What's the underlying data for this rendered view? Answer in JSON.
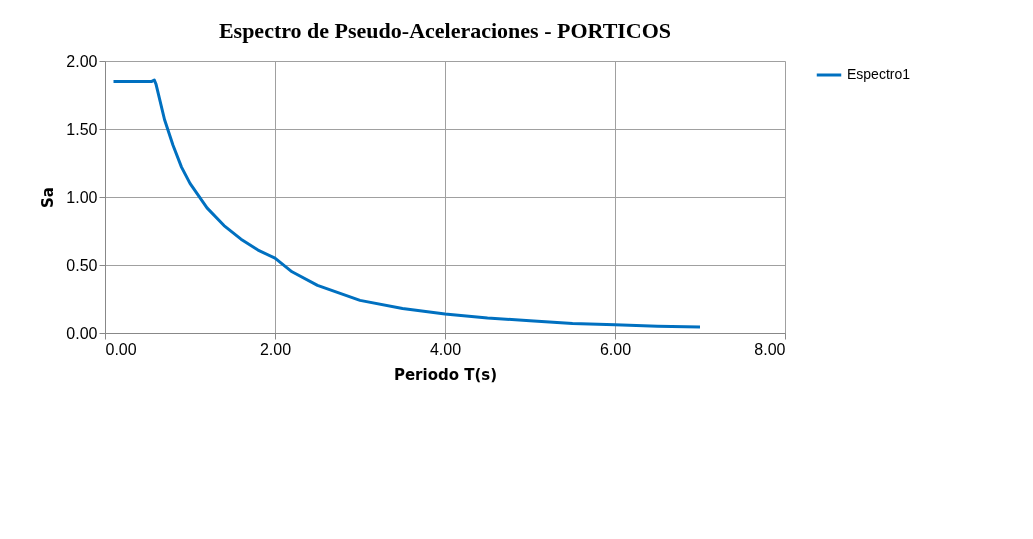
{
  "chart_data": {
    "type": "line",
    "title": "Espectro de Pseudo-Aceleraciones - PORTICOS",
    "xlabel": "Periodo T(s)",
    "ylabel": "Sa",
    "x": [
      0.1,
      0.55,
      0.58,
      0.6,
      0.7,
      0.8,
      0.9,
      1.0,
      1.2,
      1.4,
      1.6,
      1.8,
      2.0,
      2.2,
      2.5,
      3.0,
      3.5,
      4.0,
      4.5,
      5.0,
      5.5,
      6.0,
      6.5,
      7.0
    ],
    "series": [
      {
        "name": "Espectro1",
        "color": "#0070c0",
        "values": [
          1.85,
          1.85,
          1.86,
          1.83,
          1.57,
          1.38,
          1.22,
          1.1,
          0.92,
          0.79,
          0.69,
          0.61,
          0.55,
          0.45,
          0.35,
          0.24,
          0.18,
          0.14,
          0.11,
          0.09,
          0.07,
          0.06,
          0.05,
          0.045
        ]
      }
    ],
    "xlim": [
      0,
      8
    ],
    "xticks": [
      {
        "value": 0,
        "label": "0.00"
      },
      {
        "value": 2,
        "label": "2.00"
      },
      {
        "value": 4,
        "label": "4.00"
      },
      {
        "value": 6,
        "label": "6.00"
      },
      {
        "value": 8,
        "label": "8.00"
      }
    ],
    "ylim": [
      0,
      2
    ],
    "yticks": [
      {
        "value": 0,
        "label": "0.00"
      },
      {
        "value": 0.5,
        "label": "0.50"
      },
      {
        "value": 1,
        "label": "1.00"
      },
      {
        "value": 1.5,
        "label": "1.50"
      },
      {
        "value": 2,
        "label": "2.00"
      }
    ],
    "grid": true,
    "legend": "right",
    "marker": "none",
    "line_style": "solid"
  }
}
